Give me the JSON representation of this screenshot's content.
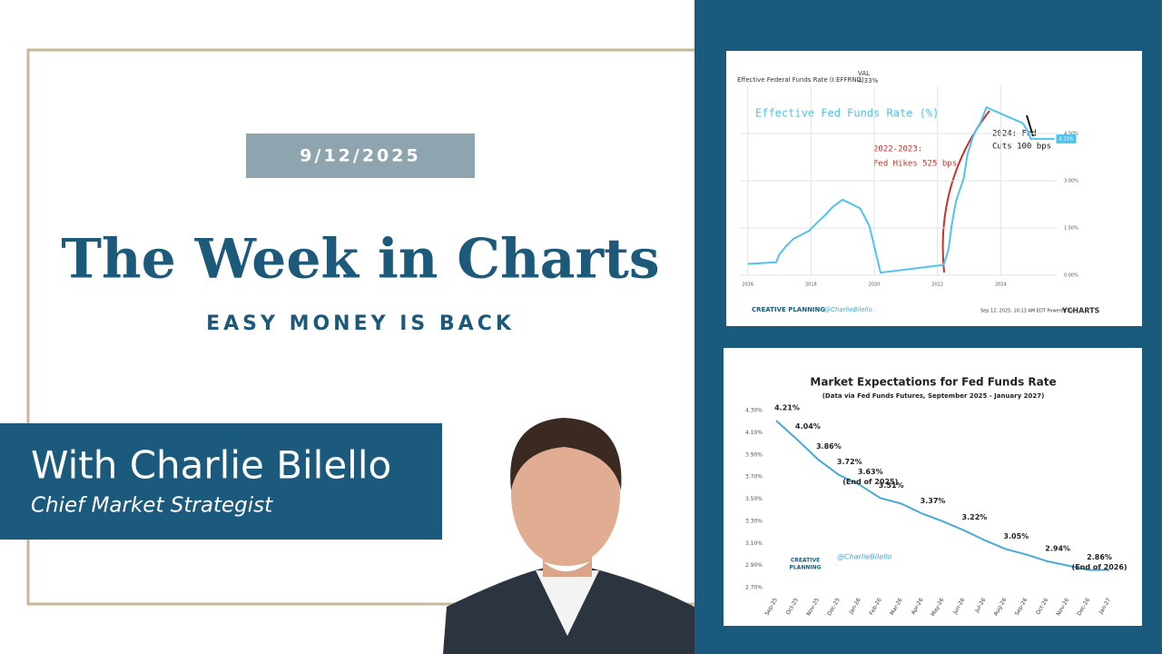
{
  "card": {
    "date": "9/12/2025",
    "title": "The Week in Charts",
    "subtitle": "EASY MONEY IS BACK",
    "name": "With Charlie Bilello",
    "role": "Chief Market Strategist"
  },
  "chart_data": [
    {
      "type": "line",
      "header": "Effective Federal Funds Rate (I:EFFRND)",
      "val_header": "VAL",
      "val": "4.33%",
      "title": "Effective Fed Funds Rate (%)",
      "color": "#4fc3ee",
      "end_label": "4.33%",
      "x": [
        2016.0,
        2016.9,
        2017.0,
        2017.2,
        2017.45,
        2017.95,
        2018.2,
        2018.45,
        2018.7,
        2019.0,
        2019.55,
        2019.7,
        2019.85,
        2020.2,
        2022.2,
        2022.35,
        2022.45,
        2022.58,
        2022.83,
        2022.95,
        2023.1,
        2023.2,
        2023.35,
        2023.55,
        2024.7,
        2024.85,
        2024.95,
        2025.7
      ],
      "values": [
        0.36,
        0.41,
        0.66,
        0.91,
        1.16,
        1.42,
        1.68,
        1.91,
        2.18,
        2.4,
        2.13,
        1.85,
        1.55,
        0.08,
        0.33,
        0.83,
        1.58,
        2.33,
        3.08,
        3.83,
        4.33,
        4.58,
        4.83,
        5.33,
        4.83,
        4.58,
        4.33,
        4.33
      ],
      "xlim": [
        2015.75,
        2025.8
      ],
      "xticks": [
        2016,
        2018,
        2020,
        2022,
        2024
      ],
      "ylim": [
        0,
        6
      ],
      "yticks": [
        {
          "value": 0,
          "label": "0.00%"
        },
        {
          "value": 1.5,
          "label": "1.50%"
        },
        {
          "value": 3,
          "label": "3.00%"
        },
        {
          "value": 4.5,
          "label": "4.50%"
        }
      ],
      "grid": true,
      "hike_note": [
        "2022-2023:",
        "Fed Hikes 525 bps"
      ],
      "cut_note": [
        "2024: Fed",
        "Cuts 100 bps"
      ],
      "brand": "CREATIVE PLANNING",
      "handle": "@CharlieBilello",
      "timestamp": "Sep 12, 2025, 10:13 AM EDT Powered by",
      "source": "YCHARTS"
    },
    {
      "type": "line",
      "title": "Market Expectations for Fed Funds Rate",
      "subtitle": "(Data via Fed Funds Futures, September 2025 - January 2027)",
      "color": "#46a9d6",
      "categories": [
        "Sep-25",
        "Oct-25",
        "Nov-25",
        "Dec-25",
        "Jan-26",
        "Feb-26",
        "Mar-26",
        "Apr-26",
        "May-26",
        "Jun-26",
        "Jul-26",
        "Aug-26",
        "Sep-26",
        "Oct-26",
        "Nov-26",
        "Dec-26",
        "Jan-27"
      ],
      "values": [
        4.21,
        4.04,
        3.86,
        3.72,
        3.63,
        3.51,
        3.46,
        3.37,
        3.3,
        3.22,
        3.13,
        3.05,
        3.0,
        2.94,
        2.9,
        2.86,
        2.86
      ],
      "value_labels": [
        "4.21%",
        "4.04%",
        "3.86%",
        "3.72%",
        "3.63%",
        "3.51%",
        null,
        "3.37%",
        null,
        "3.22%",
        null,
        "3.05%",
        null,
        "2.94%",
        null,
        "2.86%",
        null
      ],
      "value_notes": [
        null,
        null,
        null,
        null,
        "(End of 2025)",
        null,
        null,
        null,
        null,
        null,
        null,
        null,
        null,
        null,
        null,
        "(End of 2026)",
        null
      ],
      "ylim": [
        2.7,
        4.3
      ],
      "yticks": [
        {
          "value": 2.7,
          "label": "2.70%"
        },
        {
          "value": 2.9,
          "label": "2.90%"
        },
        {
          "value": 3.1,
          "label": "3.10%"
        },
        {
          "value": 3.3,
          "label": "3.30%"
        },
        {
          "value": 3.5,
          "label": "3.50%"
        },
        {
          "value": 3.7,
          "label": "3.70%"
        },
        {
          "value": 3.9,
          "label": "3.90%"
        },
        {
          "value": 4.1,
          "label": "4.10%"
        },
        {
          "value": 4.3,
          "label": "4.30%"
        }
      ],
      "brand": [
        "CREATIVE",
        "PLANNING"
      ],
      "handle": "@CharlieBilello"
    }
  ]
}
